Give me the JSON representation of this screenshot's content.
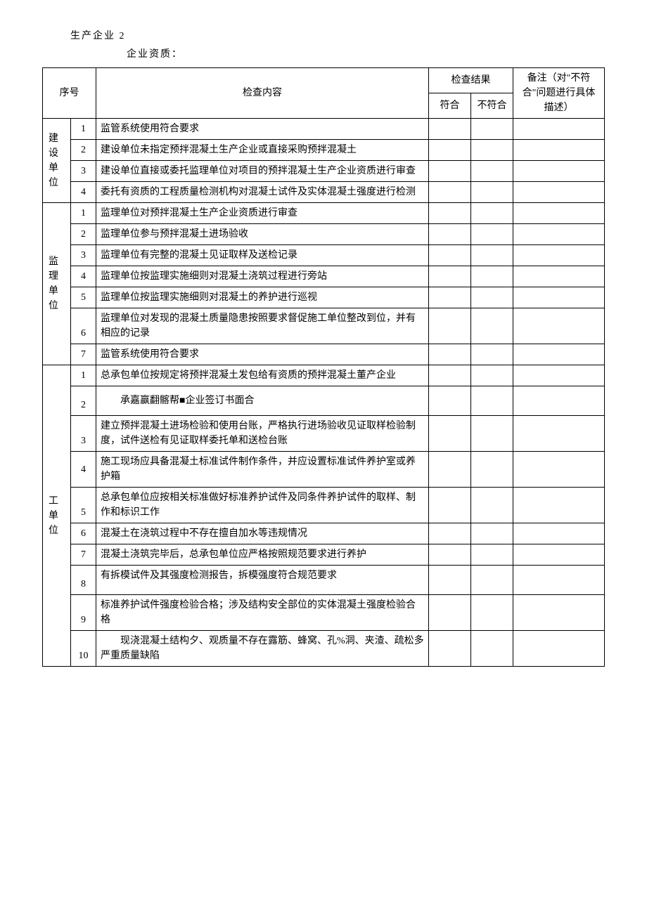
{
  "header": {
    "line1": "生产企业 2",
    "line2": "企业资质："
  },
  "table": {
    "head": {
      "seq": "序号",
      "content": "检查内容",
      "result": "检查结果",
      "conform": "符合",
      "nonconform": "不符合",
      "remark": "备注（对\"不符合\"问题进行具体描述）"
    },
    "groups": [
      {
        "label": "建 设单位",
        "rows": [
          {
            "num": "1",
            "text": "监管系统使用符合要求"
          },
          {
            "num": "2",
            "text": "建设单位未指定预拌混凝土生产企业或直接采购预拌混凝土"
          },
          {
            "num": "3",
            "text": "建设单位直接或委托监理单位对项目的预拌混凝土生产企业资质进行审查"
          },
          {
            "num": "4",
            "text": "委托有资质的工程质量检测机构对混凝土试件及实体混凝土强度进行检测"
          }
        ]
      },
      {
        "label": "监 理单位",
        "rows": [
          {
            "num": "1",
            "text": "监理单位对预拌混凝土生产企业资质进行审查"
          },
          {
            "num": "2",
            "text": "监理单位参与预拌混凝土进场验收"
          },
          {
            "num": "3",
            "text": "监理单位有完整的混凝土见证取样及送检记录"
          },
          {
            "num": "4",
            "text": "监理单位按监理实施细则对混凝土浇筑过程进行旁站",
            "numBottom": true,
            "contentTop": true
          },
          {
            "num": "5",
            "text": "监理单位按监理实施细则对混凝土的养护进行巡视",
            "numBottom": true,
            "contentTop": true
          },
          {
            "num": "6",
            "text": "监理单位对发现的混凝土质量隐患按照要求督促施工单位整改到位，并有相应的记录",
            "numBottom": true
          },
          {
            "num": "7",
            "text": "监管系统使用符合要求"
          }
        ]
      },
      {
        "label": "工单位",
        "rows": [
          {
            "num": "1",
            "text": "总承包单位按规定将预拌混凝土发包给有资质的预拌混凝土董产企业"
          },
          {
            "num": "2",
            "text": "承嘉赢翻髂帮■企业签订书面合",
            "indent": true,
            "numBottom": true,
            "tall": true
          },
          {
            "num": "3",
            "text": "建立预拌混凝土进场检验和使用台账，严格执行进场验收见证取样检验制度，试件送检有见证取样委托单和送检台账",
            "numBottom": true
          },
          {
            "num": "4",
            "text": "施工现场应具备混凝土标准试件制作条件，并应设置标准试件养护室或养护箱"
          },
          {
            "num": "5",
            "text": "总承包单位应按相关标准做好标准养护试件及同条件养护试件的取样、制作和标识工作",
            "numBottom": true
          },
          {
            "num": "6",
            "text": "混凝土在浇筑过程中不存在擅自加水等违规情况"
          },
          {
            "num": "7",
            "text": "混凝土浇筑完毕后，总承包单位应严格按照规范要求进行养护",
            "numBottom": true
          },
          {
            "num": "8",
            "text": "有拆模试件及其强度检测报告，拆模强度符合规范要求",
            "numBottom": true,
            "contentTop": true,
            "tall": true
          },
          {
            "num": "9",
            "text": "标准养护试件强度检验合格；涉及结构安全部位的实体混凝土强度检验合格",
            "numBottom": true
          },
          {
            "num": "10",
            "text": "现浇混凝土结构夕、观质量不存在露筋、蜂窝、孔%洞、夹渣、疏松多严重质量缺陷",
            "indent": true,
            "numBottom": true
          }
        ]
      }
    ]
  }
}
